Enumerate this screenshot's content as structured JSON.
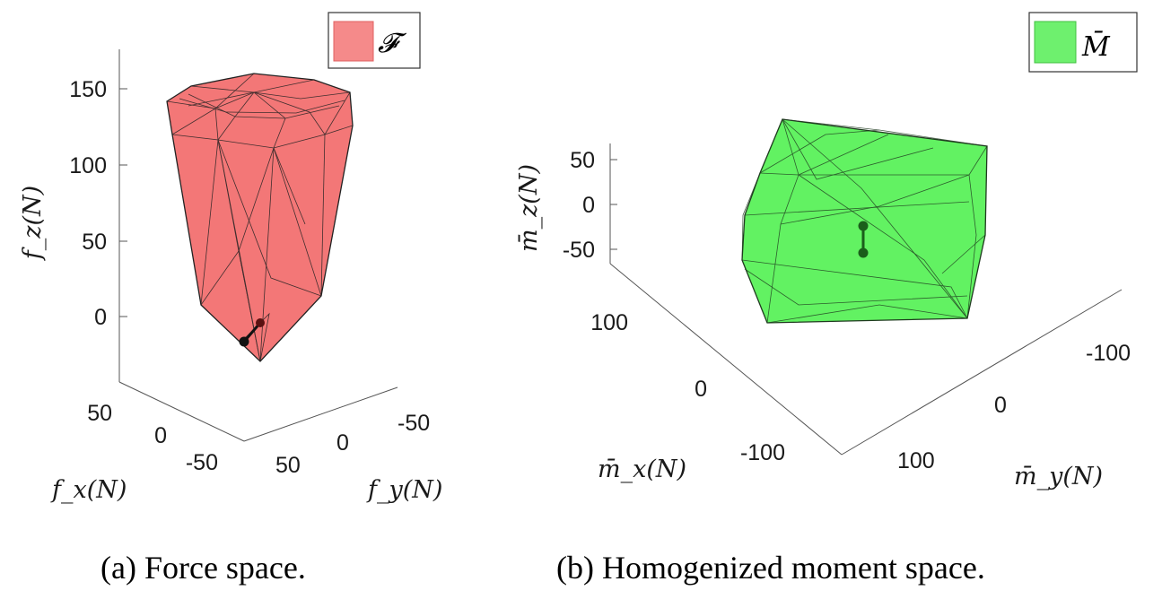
{
  "chart_data": [
    {
      "type": "3d-polytope",
      "panel": "a",
      "caption": "(a) Force space.",
      "legend": {
        "label": "𝓕",
        "color": "#f26b6b"
      },
      "fill_color": "#f26b6b",
      "edge_color": "#222222",
      "axes": {
        "x": {
          "label": "f_x(N)",
          "ticks": [
            "50",
            "0",
            "-50"
          ]
        },
        "y": {
          "label": "f_y(N)",
          "ticks": [
            "50",
            "0",
            "-50"
          ]
        },
        "z": {
          "label": "f_z(N)",
          "ticks": [
            "0",
            "50",
            "100",
            "150"
          ]
        }
      },
      "marker_color": "#111111"
    },
    {
      "type": "3d-polytope",
      "panel": "b",
      "caption": "(b) Homogenized moment space.",
      "legend": {
        "label": "M̄",
        "color": "#55ee55"
      },
      "fill_color": "#4cf04c",
      "edge_color": "#1f3a1f",
      "axes": {
        "x": {
          "label": "m̄_x(N)",
          "ticks": [
            "100",
            "0",
            "-100"
          ]
        },
        "y": {
          "label": "m̄_y(N)",
          "ticks": [
            "100",
            "0",
            "-100"
          ]
        },
        "z": {
          "label": "m̄_z(N)",
          "ticks": [
            "-50",
            "0",
            "50"
          ]
        }
      },
      "marker_color": "#1b5e1b"
    }
  ]
}
